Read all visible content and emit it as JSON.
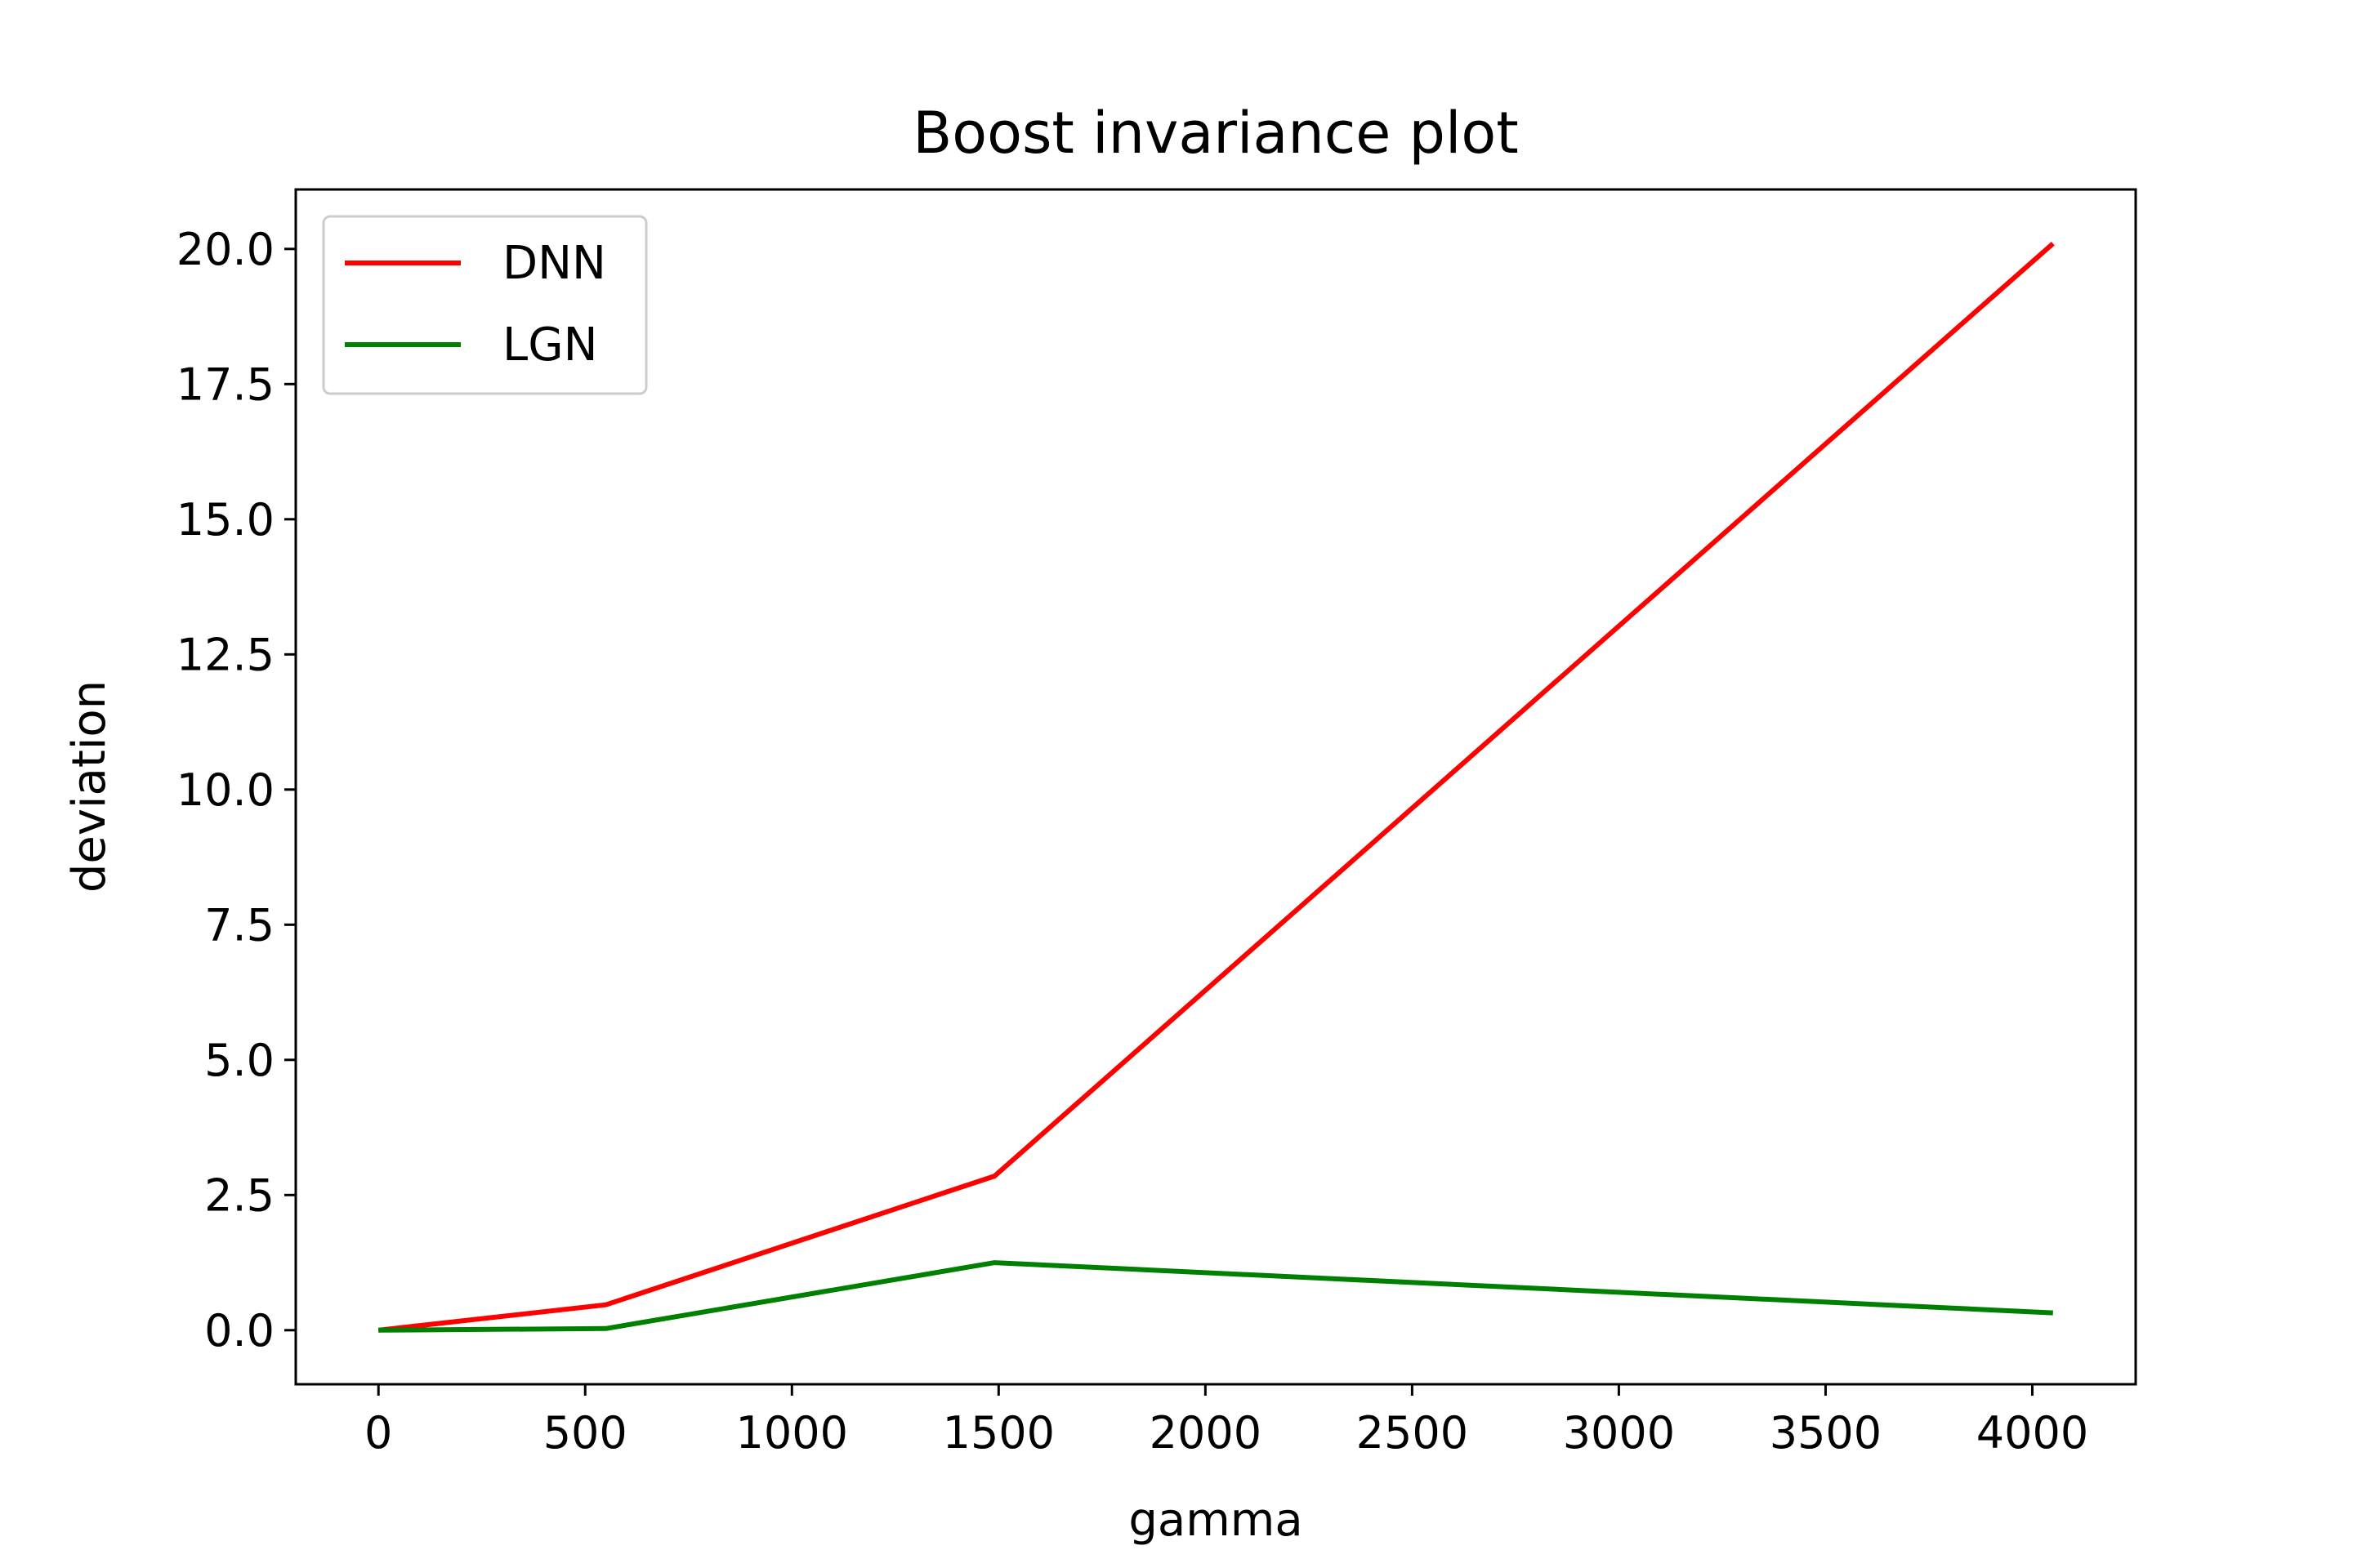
{
  "chart_data": {
    "type": "line",
    "title": "Boost invariance plot",
    "xlabel": "gamma",
    "ylabel": "deviation",
    "xlim": [
      -200,
      4250
    ],
    "ylim": [
      -1.0,
      21.1
    ],
    "xticks": [
      0,
      500,
      1000,
      1500,
      2000,
      2500,
      3000,
      3500,
      4000
    ],
    "xtick_labels": [
      "0",
      "500",
      "1000",
      "1500",
      "2000",
      "2500",
      "3000",
      "3500",
      "4000"
    ],
    "yticks": [
      0.0,
      2.5,
      5.0,
      7.5,
      10.0,
      12.5,
      15.0,
      17.5,
      20.0
    ],
    "ytick_labels": [
      "0.0",
      "2.5",
      "5.0",
      "7.5",
      "10.0",
      "12.5",
      "15.0",
      "17.5",
      "20.0"
    ],
    "grid": false,
    "legend_position": "top-left",
    "series": [
      {
        "name": "DNN",
        "color": "#ff0000",
        "x": [
          0,
          550,
          1490,
          4050
        ],
        "y": [
          0.0,
          0.47,
          2.85,
          20.1
        ]
      },
      {
        "name": "LGN",
        "color": "#008000",
        "x": [
          0,
          550,
          1490,
          4050
        ],
        "y": [
          0.0,
          0.03,
          1.25,
          0.32
        ]
      }
    ]
  }
}
